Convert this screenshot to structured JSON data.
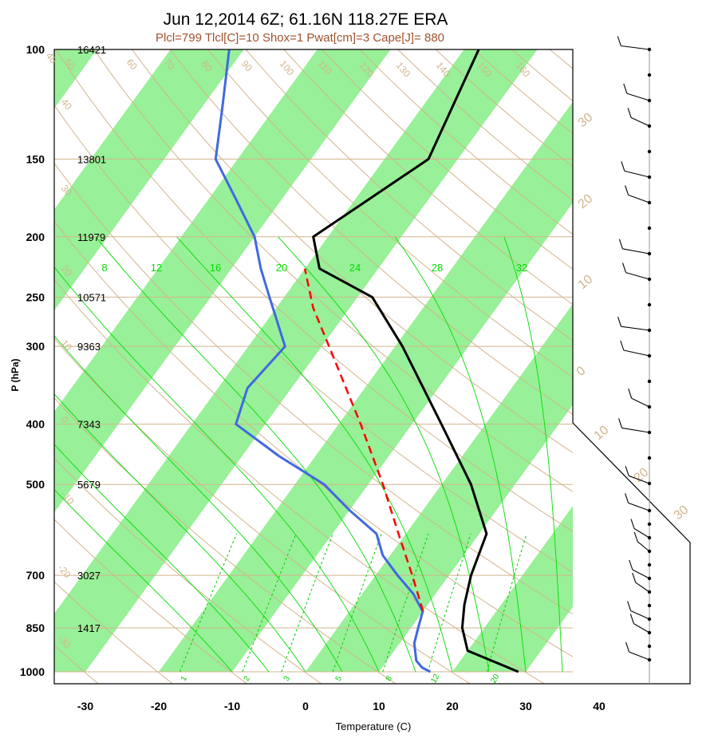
{
  "title": "Jun 12,2014 6Z; 61.16N 118.27E ERA",
  "subtitle": "Plcl=799 Tlcl[C]=10 Shox=1 Pwat[cm]=3 Cape[J]= 880",
  "colors": {
    "band": "#98f098",
    "dry_adiabat": "#d2b48c",
    "temperature": "#000000",
    "dewpoint": "#4169e1",
    "parcel": "#ff0000",
    "moist_adiabat": "#00dd00",
    "mixing_ratio": "#00cc00",
    "subtitle": "#a0522d"
  },
  "chart_data": {
    "type": "line",
    "title": "Jun 12,2014 6Z; 61.16N 118.27E ERA",
    "subtitle": "Plcl=799 Tlcl[C]=10 Shox=1 Pwat[cm]=3 Cape[J]= 880",
    "xlabel": "Temperature (C)",
    "ylabel": "P (hPa)",
    "x_ticks": [
      -30,
      -20,
      -10,
      0,
      10,
      20,
      30,
      40
    ],
    "p_levels": [
      {
        "p": 100,
        "label": "100",
        "height": "16421"
      },
      {
        "p": 150,
        "label": "150",
        "height": "13801"
      },
      {
        "p": 200,
        "label": "200",
        "height": "11979"
      },
      {
        "p": 250,
        "label": "250",
        "height": "10571"
      },
      {
        "p": 300,
        "label": "300",
        "height": "9363"
      },
      {
        "p": 400,
        "label": "400",
        "height": "7343"
      },
      {
        "p": 500,
        "label": "500",
        "height": "5679"
      },
      {
        "p": 700,
        "label": "700",
        "height": "3027"
      },
      {
        "p": 850,
        "label": "850",
        "height": "1417"
      },
      {
        "p": 1000,
        "label": "1000",
        "height": ""
      }
    ],
    "y_scale": "log",
    "skew": true,
    "series": [
      {
        "name": "Temperature",
        "color": "#000000",
        "points": [
          [
            1000,
            29
          ],
          [
            925,
            20
          ],
          [
            850,
            17
          ],
          [
            780,
            15
          ],
          [
            700,
            13
          ],
          [
            600,
            11
          ],
          [
            500,
            4
          ],
          [
            400,
            -6
          ],
          [
            300,
            -19
          ],
          [
            250,
            -28
          ],
          [
            225,
            -38
          ],
          [
            200,
            -42
          ],
          [
            150,
            -34
          ],
          [
            100,
            -38
          ]
        ]
      },
      {
        "name": "Dewpoint",
        "color": "#4169e1",
        "points": [
          [
            1000,
            17
          ],
          [
            985,
            15.5
          ],
          [
            960,
            14
          ],
          [
            900,
            12
          ],
          [
            850,
            11
          ],
          [
            800,
            10
          ],
          [
            750,
            7
          ],
          [
            700,
            3
          ],
          [
            650,
            -1
          ],
          [
            600,
            -4
          ],
          [
            550,
            -10
          ],
          [
            500,
            -16
          ],
          [
            450,
            -25
          ],
          [
            400,
            -34
          ],
          [
            350,
            -36
          ],
          [
            300,
            -35
          ],
          [
            250,
            -42
          ],
          [
            225,
            -46
          ],
          [
            200,
            -50
          ],
          [
            175,
            -56
          ],
          [
            150,
            -63
          ],
          [
            125,
            -67
          ],
          [
            100,
            -72
          ]
        ]
      },
      {
        "name": "Parcel",
        "color": "#ff0000",
        "dashed": true,
        "points": [
          [
            799,
            10
          ],
          [
            700,
            5
          ],
          [
            600,
            -1
          ],
          [
            500,
            -8
          ],
          [
            400,
            -17
          ],
          [
            300,
            -29
          ],
          [
            260,
            -35
          ],
          [
            225,
            -40
          ]
        ]
      }
    ],
    "dry_adiabat_labels_top": [
      "40",
      "50",
      "60",
      "70",
      "80",
      "90",
      "100",
      "110",
      "120",
      "130",
      "140",
      "150",
      "160"
    ],
    "dry_adiabat_labels_right": [
      "30",
      "20",
      "10",
      "0"
    ],
    "dry_adiabat_labels_left": [
      "40",
      "30",
      "20",
      "10",
      "0",
      "-10",
      "-20",
      "-30"
    ],
    "dry_adiabat_labels_diag": [
      "10",
      "20",
      "30"
    ],
    "moist_adiabat_labels": [
      "8",
      "12",
      "16",
      "20",
      "24",
      "28",
      "32"
    ],
    "mixing_ratio_labels": [
      "1",
      "2",
      "3",
      "5",
      "8",
      "12",
      "20"
    ],
    "wind_barbs_count": 30
  }
}
